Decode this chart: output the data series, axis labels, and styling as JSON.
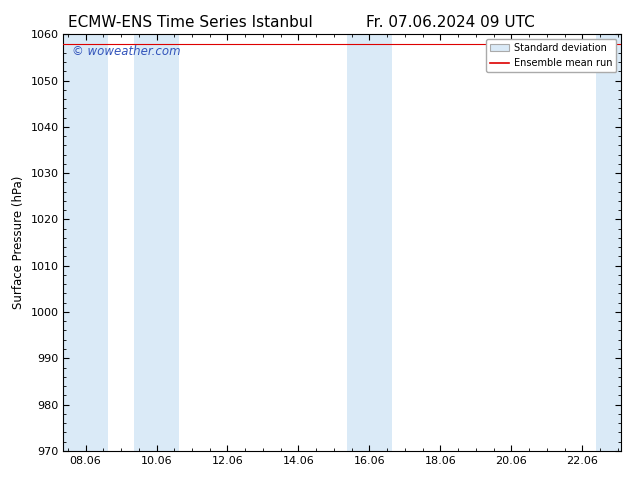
{
  "title_left": "ECMW-ENS Time Series Istanbul",
  "title_right": "Fr. 07.06.2024 09 UTC",
  "ylabel": "Surface Pressure (hPa)",
  "ylim": [
    970,
    1060
  ],
  "yticks": [
    970,
    980,
    990,
    1000,
    1010,
    1020,
    1030,
    1040,
    1050,
    1060
  ],
  "xtick_labels": [
    "08.06",
    "10.06",
    "12.06",
    "14.06",
    "16.06",
    "18.06",
    "20.06",
    "22.06"
  ],
  "xtick_positions": [
    8,
    10,
    12,
    14,
    16,
    18,
    20,
    22
  ],
  "xlim": [
    7.375,
    23.1
  ],
  "shaded_band_color": "#daeaf7",
  "mean_line_color": "#dd0000",
  "watermark_text": "© woweather.com",
  "watermark_color": "#3355bb",
  "legend_std_label": "Standard deviation",
  "legend_mean_label": "Ensemble mean run",
  "bg_color": "#ffffff",
  "title_fontsize": 11,
  "label_fontsize": 8.5,
  "tick_fontsize": 8,
  "shaded_regions": [
    {
      "xstart": 7.375,
      "xend": 8.625
    },
    {
      "xstart": 9.375,
      "xend": 10.625
    },
    {
      "xstart": 15.375,
      "xend": 16.625
    },
    {
      "xstart": 22.375,
      "xend": 23.1
    }
  ],
  "mean_line_x": [
    7.375,
    23.1
  ],
  "mean_line_y": [
    1058,
    1058
  ]
}
